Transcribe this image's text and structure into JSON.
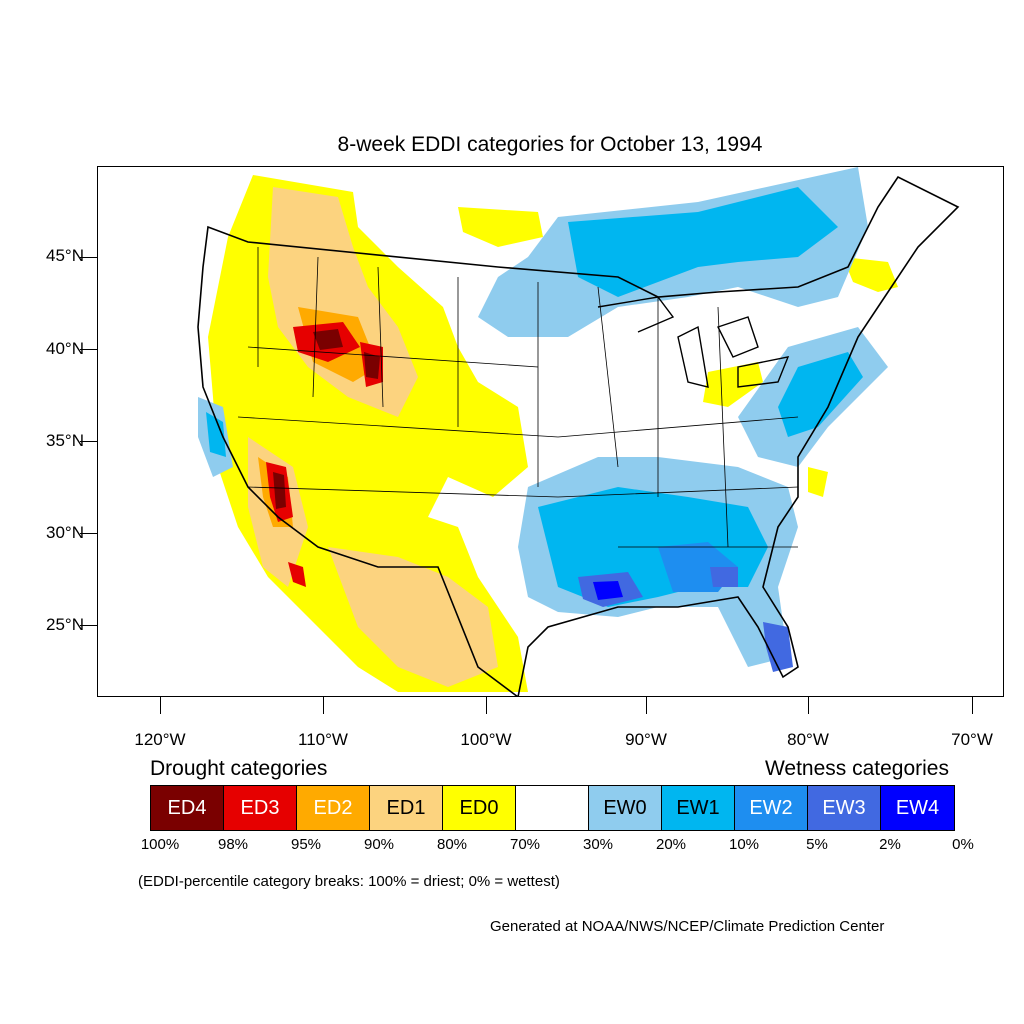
{
  "title": "8-week EDDI categories for October 13, 1994",
  "map": {
    "lat_labels": [
      "45°N",
      "40°N",
      "35°N",
      "30°N",
      "25°N"
    ],
    "lon_labels": [
      "120°W",
      "110°W",
      "100°W",
      "90°W",
      "80°W",
      "70°W"
    ],
    "region_colors": {
      "ed4": "#7a0000",
      "ed3": "#e60000",
      "ed2": "#ffaa00",
      "ed1": "#fcd37f",
      "ed0": "#ffff00",
      "ew0": "#8fccee",
      "ew1": "#00b6f0",
      "ew2": "#1e8ef0",
      "ew3": "#4169e1",
      "ew4": "#0000ff"
    }
  },
  "legend": {
    "drought_heading": "Drought categories",
    "wetness_heading": "Wetness categories",
    "categories": [
      {
        "label": "ED4",
        "color": "#7a0000",
        "text_color": "#ffffff"
      },
      {
        "label": "ED3",
        "color": "#e60000",
        "text_color": "#ffffff"
      },
      {
        "label": "ED2",
        "color": "#ffaa00",
        "text_color": "#ffffff"
      },
      {
        "label": "ED1",
        "color": "#fcd37f",
        "text_color": "#000000"
      },
      {
        "label": "ED0",
        "color": "#ffff00",
        "text_color": "#000000"
      },
      {
        "label": "",
        "color": "#ffffff",
        "text_color": "#000000"
      },
      {
        "label": "EW0",
        "color": "#8fccee",
        "text_color": "#000000"
      },
      {
        "label": "EW1",
        "color": "#00b6f0",
        "text_color": "#000000"
      },
      {
        "label": "EW2",
        "color": "#1e8ef0",
        "text_color": "#ffffff"
      },
      {
        "label": "EW3",
        "color": "#4169e1",
        "text_color": "#ffffff"
      },
      {
        "label": "EW4",
        "color": "#0000ff",
        "text_color": "#ffffff"
      }
    ],
    "percentiles": [
      "100%",
      "98%",
      "95%",
      "90%",
      "80%",
      "70%",
      "30%",
      "20%",
      "10%",
      "5%",
      "2%",
      "0%"
    ]
  },
  "note": "(EDDI-percentile category breaks: 100% = driest; 0% = wettest)",
  "credit": "Generated at NOAA/NWS/NCEP/Climate Prediction Center"
}
